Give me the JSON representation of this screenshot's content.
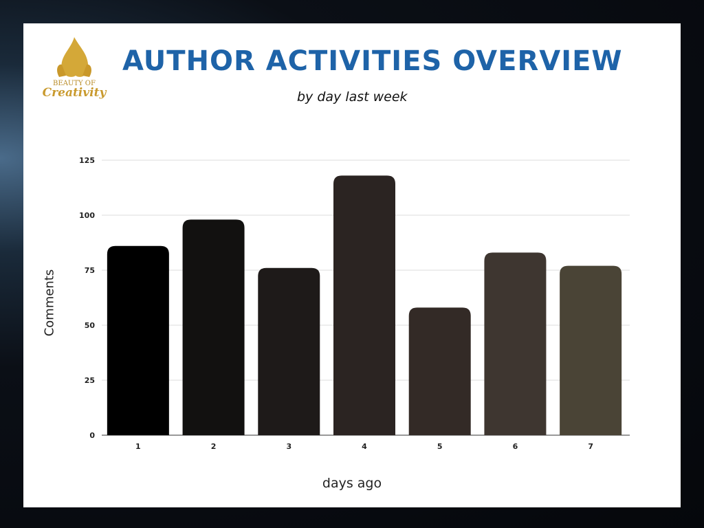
{
  "logo_text": "Beauty of Creativity",
  "chart_data": {
    "type": "bar",
    "title": "AUTHOR ACTIVITIES OVERVIEW",
    "subtitle": "by day last week",
    "xlabel": "days ago",
    "ylabel": "Comments",
    "categories": [
      "1",
      "2",
      "3",
      "4",
      "5",
      "6",
      "7"
    ],
    "values": [
      86,
      98,
      76,
      118,
      58,
      83,
      77
    ],
    "colors": [
      "#000000",
      "#121110",
      "#1e1a19",
      "#2b2422",
      "#332a26",
      "#3e3630",
      "#4a4436"
    ],
    "ylim": [
      0,
      125
    ],
    "yticks": [
      0,
      25,
      50,
      75,
      100,
      125
    ],
    "grid": true
  }
}
